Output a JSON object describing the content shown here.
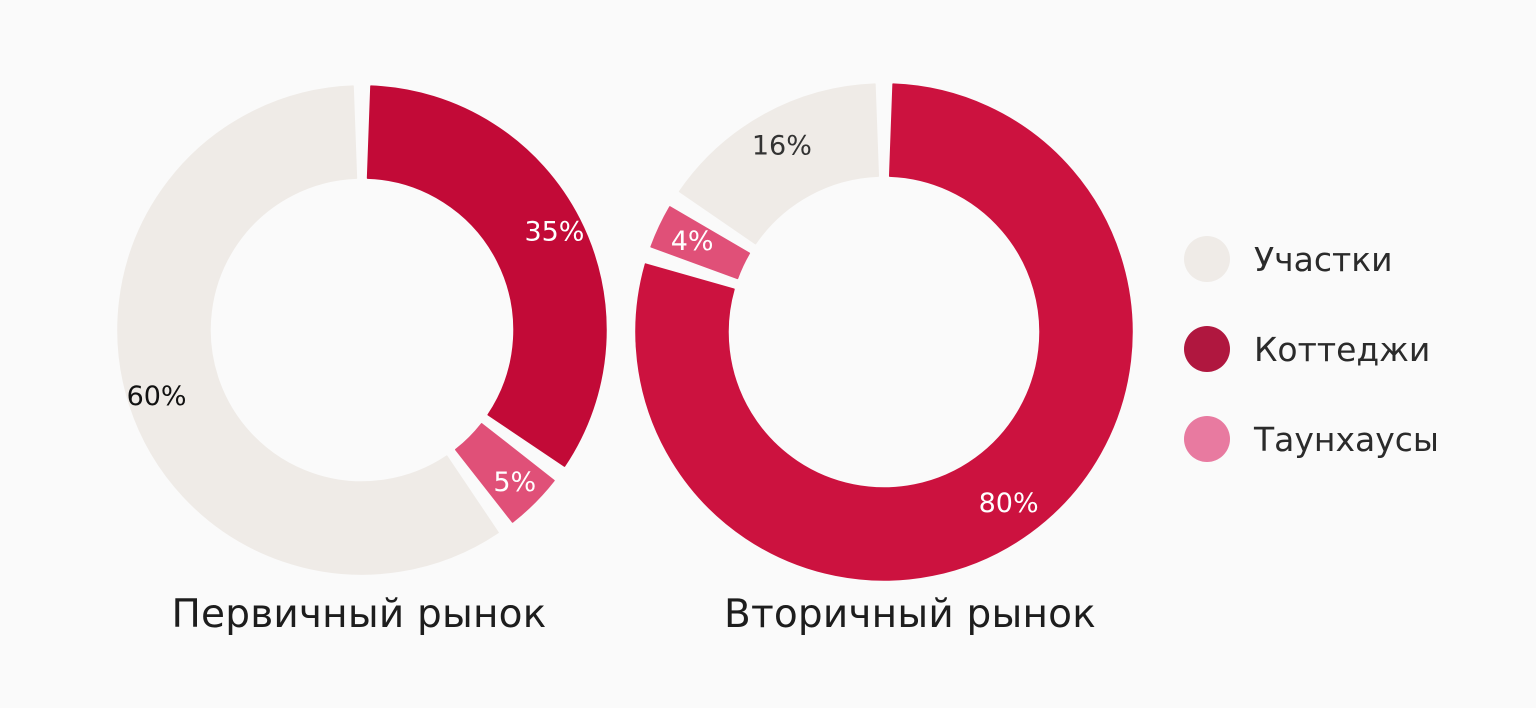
{
  "chart_data": [
    {
      "type": "pie",
      "variant": "donut",
      "title": "Первичный рынок",
      "slices": [
        {
          "label": "Коттеджи",
          "value": 35,
          "text": "35%",
          "color": "#c20a37",
          "text_color": "#ffffff"
        },
        {
          "label": "Таунхаусы",
          "value": 5,
          "text": "5%",
          "color": "#e05078",
          "text_color": "#ffffff"
        },
        {
          "label": "Участки",
          "value": 60,
          "text": "60%",
          "color": "#efebe7",
          "text_color": "#111111"
        }
      ]
    },
    {
      "type": "pie",
      "variant": "donut",
      "title": "Вторичный рынок",
      "slices": [
        {
          "label": "Коттеджи",
          "value": 80,
          "text": "80%",
          "color": "#cc123f",
          "text_color": "#ffffff"
        },
        {
          "label": "Таунхаусы",
          "value": 4,
          "text": "4%",
          "color": "#e05078",
          "text_color": "#ffffff"
        },
        {
          "label": "Участки",
          "value": 16,
          "text": "16%",
          "color": "#efebe7",
          "text_color": "#333333"
        }
      ]
    }
  ],
  "legend": {
    "placement": "right",
    "items": [
      {
        "label": "Участки",
        "color": "#efebe7"
      },
      {
        "label": "Коттеджи",
        "color": "#b0173f"
      },
      {
        "label": "Таунхаусы",
        "color": "#e87aa0"
      }
    ]
  }
}
